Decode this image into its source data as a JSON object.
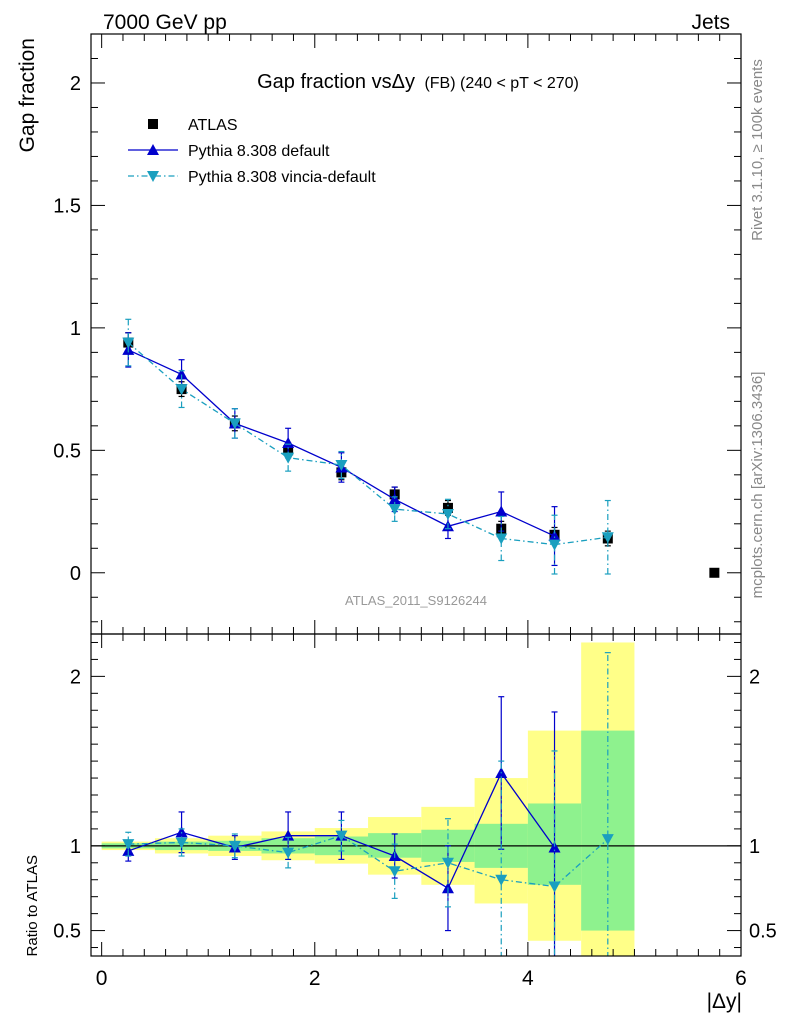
{
  "header": {
    "left": "7000 GeV pp",
    "right": "Jets"
  },
  "side_text": {
    "top": "Rivet 3.1.10, ≥ 100k events",
    "bottom": "mcplots.cern.ch [arXiv:1306.3436]"
  },
  "watermark": "ATLAS_2011_S9126244",
  "chart_data": [
    {
      "type": "scatter",
      "panel": "main",
      "title_main": "Gap fraction vsΔy",
      "title_sub": "(FB)  (240 < pT < 270)",
      "ylabel": "Gap fraction",
      "xlim": [
        -0.1,
        6.0
      ],
      "ylim": [
        -0.25,
        2.2
      ],
      "yticks": [
        0,
        0.5,
        1,
        1.5,
        2
      ],
      "ytick_labels": [
        "0",
        "0.5",
        "1",
        "1.5",
        "2"
      ],
      "legend_placement": "top-left",
      "series": [
        {
          "name": "ATLAS",
          "color": "#000000",
          "marker": "square",
          "x": [
            0.25,
            0.75,
            1.25,
            1.75,
            2.25,
            2.75,
            3.25,
            3.75,
            4.25,
            4.75,
            5.75
          ],
          "y": [
            0.94,
            0.75,
            0.61,
            0.5,
            0.41,
            0.32,
            0.265,
            0.18,
            0.155,
            0.14,
            0.0
          ],
          "yerr": [
            0.04,
            0.03,
            0.03,
            0.03,
            0.03,
            0.03,
            0.03,
            0.03,
            0.03,
            0.03,
            0.0
          ]
        },
        {
          "name": "Pythia 8.308 default",
          "color": "#0000cc",
          "marker": "triangle-up",
          "line": "solid",
          "x": [
            0.25,
            0.75,
            1.25,
            1.75,
            2.25,
            2.75,
            3.25,
            3.75,
            4.25
          ],
          "y": [
            0.91,
            0.81,
            0.61,
            0.53,
            0.43,
            0.3,
            0.19,
            0.25,
            0.15
          ],
          "yerr": [
            0.07,
            0.06,
            0.06,
            0.06,
            0.06,
            0.05,
            0.05,
            0.08,
            0.12
          ]
        },
        {
          "name": "Pythia 8.308 vincia-default",
          "color": "#1a9fbf",
          "marker": "triangle-down",
          "line": "dashdot",
          "x": [
            0.25,
            0.75,
            1.25,
            1.75,
            2.25,
            2.75,
            3.25,
            3.75,
            4.25,
            4.75
          ],
          "y": [
            0.94,
            0.75,
            0.61,
            0.47,
            0.44,
            0.26,
            0.24,
            0.14,
            0.115,
            0.145
          ],
          "yerr": [
            0.095,
            0.075,
            0.06,
            0.055,
            0.055,
            0.05,
            0.06,
            0.09,
            0.12,
            0.15
          ]
        }
      ]
    },
    {
      "type": "scatter",
      "panel": "ratio",
      "ylabel": "Ratio to ATLAS",
      "xlabel": "|Δy|",
      "xlim": [
        -0.1,
        6.0
      ],
      "ylim": [
        0.35,
        2.25
      ],
      "xticks": [
        0,
        2,
        4,
        6
      ],
      "xtick_labels": [
        "0",
        "2",
        "4",
        "6"
      ],
      "yticks": [
        0.5,
        1,
        2
      ],
      "ytick_labels": [
        "0.5",
        "1",
        "2"
      ],
      "bands": {
        "x_edges": [
          0,
          0.5,
          1.0,
          1.5,
          2.0,
          2.5,
          3.0,
          3.5,
          4.0,
          4.5,
          5.0
        ],
        "green": [
          [
            0.985,
            1.015
          ],
          [
            0.975,
            1.025
          ],
          [
            0.97,
            1.03
          ],
          [
            0.955,
            1.045
          ],
          [
            0.945,
            1.055
          ],
          [
            0.93,
            1.075
          ],
          [
            0.905,
            1.095
          ],
          [
            0.87,
            1.13
          ],
          [
            0.77,
            1.25
          ],
          [
            0.5,
            1.68
          ]
        ],
        "yellow": [
          [
            0.975,
            1.025
          ],
          [
            0.955,
            1.045
          ],
          [
            0.94,
            1.06
          ],
          [
            0.915,
            1.085
          ],
          [
            0.895,
            1.105
          ],
          [
            0.83,
            1.17
          ],
          [
            0.77,
            1.23
          ],
          [
            0.66,
            1.4
          ],
          [
            0.44,
            1.68
          ],
          [
            0.33,
            2.2
          ]
        ]
      },
      "series": [
        {
          "name": "Pythia 8.308 default",
          "color": "#0000cc",
          "marker": "triangle-up",
          "line": "solid",
          "x": [
            0.25,
            0.75,
            1.25,
            1.75,
            2.25,
            2.75,
            3.25,
            3.75,
            4.25
          ],
          "y": [
            0.97,
            1.08,
            0.99,
            1.06,
            1.06,
            0.94,
            0.75,
            1.43,
            0.99
          ],
          "yerr": [
            0.06,
            0.12,
            0.07,
            0.14,
            0.14,
            0.13,
            0.25,
            0.45,
            0.8
          ]
        },
        {
          "name": "Pythia 8.308 vincia-default",
          "color": "#1a9fbf",
          "marker": "triangle-down",
          "line": "dashdot",
          "x": [
            0.25,
            0.75,
            1.25,
            1.75,
            2.25,
            2.75,
            3.25,
            3.75,
            4.25,
            4.75
          ],
          "y": [
            1.01,
            1.02,
            1.0,
            0.96,
            1.06,
            0.85,
            0.9,
            0.8,
            0.76,
            1.04
          ],
          "yerr": [
            0.07,
            0.08,
            0.07,
            0.09,
            0.09,
            0.16,
            0.26,
            0.7,
            0.8,
            1.1
          ]
        }
      ]
    }
  ]
}
